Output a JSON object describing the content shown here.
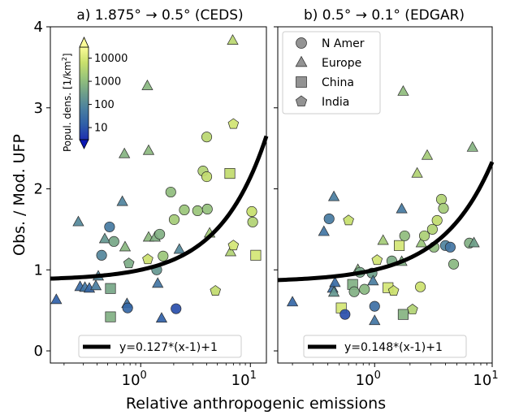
{
  "figure": {
    "xlabel": "Relative anthropogenic emissions",
    "ylabel": "Obs. / Mod. UFP"
  },
  "colorbar": {
    "label": "Popul. dens. [1/km",
    "label_sup": "2",
    "label_end": "]",
    "ticks": [
      "10000",
      "1000",
      "100",
      "10"
    ],
    "tick_values": [
      10000,
      1000,
      100,
      10
    ],
    "range": [
      3,
      30000
    ],
    "scale": "log",
    "colormap": [
      "#1e2fb0",
      "#2f5fa8",
      "#4a7fa0",
      "#6e9f8a",
      "#98c47a",
      "#c9e06c",
      "#fbfc98"
    ]
  },
  "legend_markers": {
    "items": [
      {
        "label": "N Amer",
        "marker": "circle"
      },
      {
        "label": "Europe",
        "marker": "triangle"
      },
      {
        "label": "China",
        "marker": "square"
      },
      {
        "label": "India",
        "marker": "pentagon"
      }
    ]
  },
  "chart_data": [
    {
      "type": "scatter",
      "title": "a) 1.875° → 0.5° (CEDS)",
      "xscale": "log",
      "xlim": [
        0.15,
        14
      ],
      "ylim": [
        -0.15,
        4.0
      ],
      "yticks": [
        "0",
        "1",
        "2",
        "3",
        "4"
      ],
      "ytick_values": [
        0,
        1,
        2,
        3,
        4
      ],
      "xticks": [
        {
          "label": "10",
          "sup": "0",
          "value": 1
        },
        {
          "label": "10",
          "sup": "1",
          "value": 10
        }
      ],
      "fit": {
        "label": "y=0.127*(x-1)+1",
        "slope": 0.127
      },
      "points": [
        {
          "x": 0.17,
          "y": 0.63,
          "m": "triangle",
          "p": 15
        },
        {
          "x": 0.27,
          "y": 1.59,
          "m": "triangle",
          "p": 100
        },
        {
          "x": 0.28,
          "y": 0.79,
          "m": "triangle",
          "p": 25
        },
        {
          "x": 0.31,
          "y": 0.78,
          "m": "triangle",
          "p": 40
        },
        {
          "x": 0.34,
          "y": 0.77,
          "m": "triangle",
          "p": 20
        },
        {
          "x": 0.39,
          "y": 0.8,
          "m": "triangle",
          "p": 60
        },
        {
          "x": 0.41,
          "y": 0.92,
          "m": "triangle",
          "p": 90
        },
        {
          "x": 0.44,
          "y": 1.18,
          "m": "circle",
          "p": 90
        },
        {
          "x": 0.47,
          "y": 1.38,
          "m": "triangle",
          "p": 200
        },
        {
          "x": 0.52,
          "y": 1.53,
          "m": "circle",
          "p": 50
        },
        {
          "x": 0.53,
          "y": 0.77,
          "m": "square",
          "p": 400
        },
        {
          "x": 0.53,
          "y": 0.42,
          "m": "square",
          "p": 600
        },
        {
          "x": 0.57,
          "y": 1.35,
          "m": "circle",
          "p": 400
        },
        {
          "x": 0.68,
          "y": 1.84,
          "m": "triangle",
          "p": 80
        },
        {
          "x": 0.71,
          "y": 2.43,
          "m": "triangle",
          "p": 700
        },
        {
          "x": 0.72,
          "y": 1.28,
          "m": "triangle",
          "p": 800
        },
        {
          "x": 0.75,
          "y": 0.58,
          "m": "triangle",
          "p": 35
        },
        {
          "x": 0.76,
          "y": 0.53,
          "m": "circle",
          "p": 20
        },
        {
          "x": 0.78,
          "y": 1.08,
          "m": "pentagon",
          "p": 500
        },
        {
          "x": 1.15,
          "y": 3.27,
          "m": "triangle",
          "p": 800
        },
        {
          "x": 1.18,
          "y": 2.47,
          "m": "triangle",
          "p": 900
        },
        {
          "x": 1.16,
          "y": 1.13,
          "m": "pentagon",
          "p": 7000
        },
        {
          "x": 1.18,
          "y": 1.4,
          "m": "triangle",
          "p": 900
        },
        {
          "x": 1.35,
          "y": 1.4,
          "m": "triangle",
          "p": 600
        },
        {
          "x": 1.4,
          "y": 1.0,
          "m": "circle",
          "p": 200
        },
        {
          "x": 1.43,
          "y": 0.83,
          "m": "triangle",
          "p": 40
        },
        {
          "x": 1.49,
          "y": 1.44,
          "m": "circle",
          "p": 600
        },
        {
          "x": 1.55,
          "y": 0.4,
          "m": "triangle",
          "p": 15
        },
        {
          "x": 1.6,
          "y": 1.17,
          "m": "circle",
          "p": 1500
        },
        {
          "x": 1.88,
          "y": 1.96,
          "m": "circle",
          "p": 1000
        },
        {
          "x": 2.02,
          "y": 1.62,
          "m": "circle",
          "p": 2000
        },
        {
          "x": 2.1,
          "y": 0.52,
          "m": "circle",
          "p": 8
        },
        {
          "x": 2.25,
          "y": 1.25,
          "m": "triangle",
          "p": 100
        },
        {
          "x": 2.5,
          "y": 1.74,
          "m": "circle",
          "p": 1500
        },
        {
          "x": 3.3,
          "y": 1.73,
          "m": "circle",
          "p": 1500
        },
        {
          "x": 3.7,
          "y": 2.22,
          "m": "circle",
          "p": 3000
        },
        {
          "x": 4.0,
          "y": 2.15,
          "m": "circle",
          "p": 5000
        },
        {
          "x": 4.0,
          "y": 2.64,
          "m": "circle",
          "p": 4000
        },
        {
          "x": 4.05,
          "y": 1.75,
          "m": "circle",
          "p": 1200
        },
        {
          "x": 4.25,
          "y": 1.45,
          "m": "triangle",
          "p": 2000
        },
        {
          "x": 4.8,
          "y": 0.74,
          "m": "pentagon",
          "p": 5000
        },
        {
          "x": 6.5,
          "y": 2.19,
          "m": "square",
          "p": 5000
        },
        {
          "x": 6.6,
          "y": 1.22,
          "m": "triangle",
          "p": 3000
        },
        {
          "x": 6.9,
          "y": 3.83,
          "m": "triangle",
          "p": 4000
        },
        {
          "x": 7.0,
          "y": 2.8,
          "m": "pentagon",
          "p": 8000
        },
        {
          "x": 7.0,
          "y": 1.3,
          "m": "pentagon",
          "p": 9000
        },
        {
          "x": 10.3,
          "y": 1.72,
          "m": "circle",
          "p": 6000
        },
        {
          "x": 10.5,
          "y": 1.59,
          "m": "circle",
          "p": 3000
        },
        {
          "x": 11.2,
          "y": 1.18,
          "m": "square",
          "p": 9000
        }
      ]
    },
    {
      "type": "scatter",
      "title": "b) 0.5° → 0.1° (EDGAR)",
      "xscale": "log",
      "xlim": [
        0.15,
        10
      ],
      "ylim": [
        -0.15,
        4.0
      ],
      "yticks": [
        "0",
        "1",
        "2",
        "3",
        "4"
      ],
      "ytick_values": [
        0,
        1,
        2,
        3,
        4
      ],
      "xticks": [
        {
          "label": "10",
          "sup": "0",
          "value": 1
        },
        {
          "label": "10",
          "sup": "1",
          "value": 10
        }
      ],
      "fit": {
        "label": "y=0.148*(x-1)+1",
        "slope": 0.148
      },
      "points": [
        {
          "x": 0.2,
          "y": 0.6,
          "m": "triangle",
          "p": 20
        },
        {
          "x": 0.37,
          "y": 1.47,
          "m": "triangle",
          "p": 40
        },
        {
          "x": 0.41,
          "y": 1.63,
          "m": "circle",
          "p": 50
        },
        {
          "x": 0.45,
          "y": 1.9,
          "m": "triangle",
          "p": 60
        },
        {
          "x": 0.44,
          "y": 0.77,
          "m": "triangle",
          "p": 30
        },
        {
          "x": 0.45,
          "y": 0.72,
          "m": "triangle",
          "p": 200
        },
        {
          "x": 0.46,
          "y": 0.84,
          "m": "triangle",
          "p": 25
        },
        {
          "x": 0.52,
          "y": 0.53,
          "m": "square",
          "p": 9000
        },
        {
          "x": 0.56,
          "y": 0.45,
          "m": "circle",
          "p": 8
        },
        {
          "x": 0.6,
          "y": 1.61,
          "m": "pentagon",
          "p": 6000
        },
        {
          "x": 0.65,
          "y": 0.82,
          "m": "square",
          "p": 600
        },
        {
          "x": 0.67,
          "y": 0.73,
          "m": "circle",
          "p": 600
        },
        {
          "x": 0.72,
          "y": 1.0,
          "m": "triangle",
          "p": 800
        },
        {
          "x": 0.75,
          "y": 0.97,
          "m": "circle",
          "p": 400
        },
        {
          "x": 0.82,
          "y": 0.76,
          "m": "circle",
          "p": 800
        },
        {
          "x": 0.95,
          "y": 0.96,
          "m": "circle",
          "p": 300
        },
        {
          "x": 0.97,
          "y": 0.86,
          "m": "triangle",
          "p": 60
        },
        {
          "x": 1.0,
          "y": 0.55,
          "m": "circle",
          "p": 30
        },
        {
          "x": 1.0,
          "y": 0.37,
          "m": "triangle",
          "p": 40
        },
        {
          "x": 1.05,
          "y": 1.12,
          "m": "pentagon",
          "p": 8000
        },
        {
          "x": 1.18,
          "y": 1.36,
          "m": "triangle",
          "p": 2000
        },
        {
          "x": 1.3,
          "y": 0.78,
          "m": "square",
          "p": 9000
        },
        {
          "x": 1.4,
          "y": 1.11,
          "m": "circle",
          "p": 500
        },
        {
          "x": 1.45,
          "y": 0.74,
          "m": "pentagon",
          "p": 7000
        },
        {
          "x": 1.62,
          "y": 1.3,
          "m": "square",
          "p": 9000
        },
        {
          "x": 1.7,
          "y": 1.75,
          "m": "triangle",
          "p": 50
        },
        {
          "x": 1.7,
          "y": 1.1,
          "m": "triangle",
          "p": 600
        },
        {
          "x": 1.75,
          "y": 3.2,
          "m": "triangle",
          "p": 1000
        },
        {
          "x": 1.75,
          "y": 0.45,
          "m": "square",
          "p": 700
        },
        {
          "x": 1.8,
          "y": 1.42,
          "m": "circle",
          "p": 1000
        },
        {
          "x": 2.1,
          "y": 0.51,
          "m": "pentagon",
          "p": 3000
        },
        {
          "x": 2.3,
          "y": 2.19,
          "m": "triangle",
          "p": 3000
        },
        {
          "x": 2.45,
          "y": 0.79,
          "m": "circle",
          "p": 7000
        },
        {
          "x": 2.5,
          "y": 1.33,
          "m": "triangle",
          "p": 1500
        },
        {
          "x": 2.65,
          "y": 1.42,
          "m": "circle",
          "p": 2500
        },
        {
          "x": 2.8,
          "y": 2.41,
          "m": "triangle",
          "p": 2000
        },
        {
          "x": 3.1,
          "y": 1.5,
          "m": "circle",
          "p": 3000
        },
        {
          "x": 3.2,
          "y": 1.28,
          "m": "circle",
          "p": 1000
        },
        {
          "x": 3.4,
          "y": 1.61,
          "m": "circle",
          "p": 5000
        },
        {
          "x": 3.7,
          "y": 1.87,
          "m": "circle",
          "p": 3000
        },
        {
          "x": 3.85,
          "y": 1.76,
          "m": "circle",
          "p": 2000
        },
        {
          "x": 4.0,
          "y": 1.3,
          "m": "circle",
          "p": 80
        },
        {
          "x": 4.4,
          "y": 1.28,
          "m": "circle",
          "p": 40
        },
        {
          "x": 4.7,
          "y": 1.07,
          "m": "circle",
          "p": 800
        },
        {
          "x": 6.4,
          "y": 1.33,
          "m": "circle",
          "p": 600
        },
        {
          "x": 6.8,
          "y": 2.51,
          "m": "triangle",
          "p": 700
        },
        {
          "x": 7.0,
          "y": 1.33,
          "m": "triangle",
          "p": 300
        }
      ]
    }
  ]
}
